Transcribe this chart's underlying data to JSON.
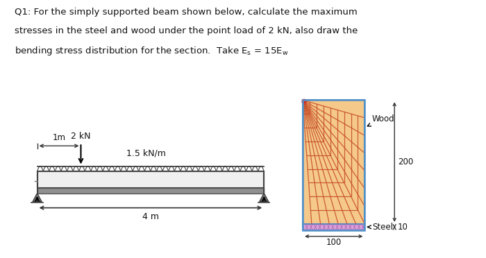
{
  "bg_color": "#ffffff",
  "beam_load_label": "2 kN",
  "dist_load_label": "1.5 kN/m",
  "wood_label": "Wood",
  "steel_label": "Steel",
  "dim_200_label": "200",
  "dim_10_label": "10",
  "dim_100_label": "100",
  "dim_4m_label": "4 m",
  "dim_1m_label": "1m",
  "wood_color": "#f5c98a",
  "wood_hatch_color": "#c8502a",
  "steel_color": "#d8a0d8",
  "section_border": "#5090c8",
  "beam_fill": "#f0f0f0",
  "beam_border": "#444444",
  "steel_beam_fill": "#909090",
  "text_color": "#111111",
  "line1": "Q1: For the simply supported beam shown below, calculate the maximum",
  "line2": "stresses in the steel and wood under the point load of 2 kN, also draw the",
  "line3": "bending stress distribution for the section.  Take E",
  "line3b": "s",
  "line3c": " = 15E",
  "line3d": "w"
}
